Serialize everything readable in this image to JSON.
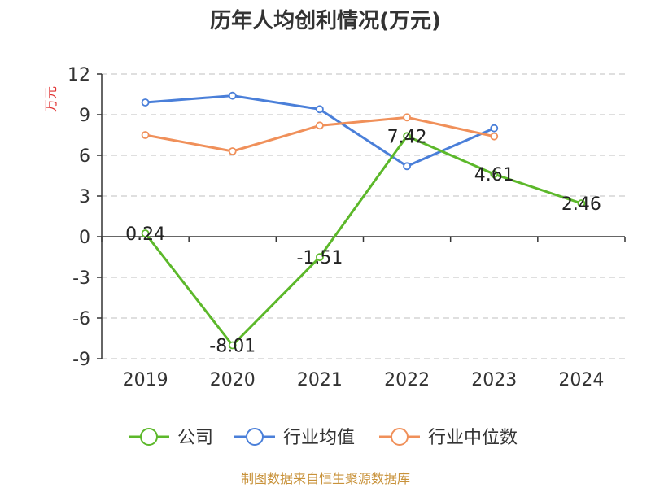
{
  "chart_data": {
    "type": "line",
    "title": "历年人均创利情况(万元)",
    "ylabel": "万元",
    "xlabel": "",
    "categories": [
      "2019",
      "2020",
      "2021",
      "2022",
      "2023",
      "2024"
    ],
    "ylim": [
      -9,
      12
    ],
    "yticks": [
      12,
      9,
      6,
      3,
      0,
      -3,
      -6,
      -9
    ],
    "grid": true,
    "legend_position": "bottom",
    "series": [
      {
        "name": "公司",
        "color": "#5cb82a",
        "values": [
          0.24,
          -8.01,
          -1.51,
          7.42,
          4.61,
          2.46
        ],
        "labels": [
          "0.24",
          "-8.01",
          "-1.51",
          "7.42",
          "4.61",
          "2.46"
        ]
      },
      {
        "name": "行业均值",
        "color": "#4a7fd9",
        "values": [
          9.9,
          10.4,
          9.4,
          5.2,
          8.0,
          null
        ]
      },
      {
        "name": "行业中位数",
        "color": "#f0905a",
        "values": [
          7.5,
          6.3,
          8.2,
          8.8,
          7.4,
          null
        ]
      }
    ],
    "ylabel_color": "#e03030"
  },
  "footer": {
    "source": "制图数据来自恒生聚源数据库",
    "color": "#c8923a"
  }
}
